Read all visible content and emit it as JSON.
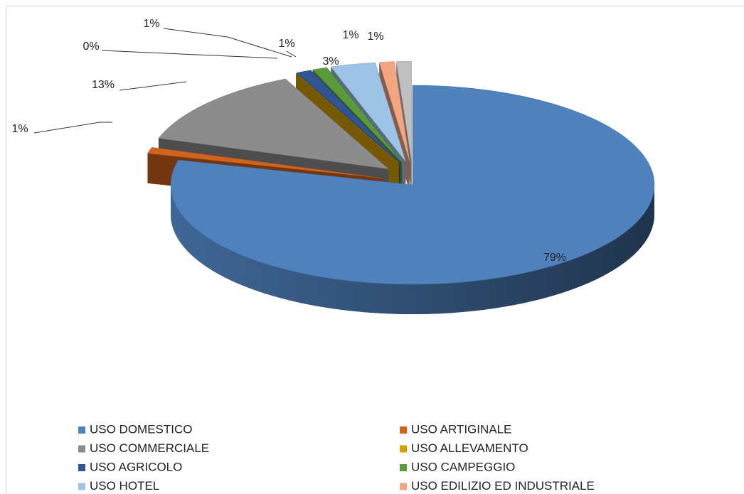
{
  "chart_data": {
    "type": "pie",
    "categories": [
      "USO DOMESTICO",
      "USO ARTIGINALE",
      "USO COMMERCIALE",
      "USO ALLEVAMENTO",
      "USO AGRICOLO",
      "USO CAMPEGGIO",
      "USO HOTEL",
      "USO EDILIZIO ED INDUSTRIALE",
      null
    ],
    "values": [
      79,
      1,
      13,
      0,
      1,
      1,
      3,
      1,
      1
    ],
    "value_labels": [
      "79%",
      "1%",
      "13%",
      "0%",
      "1%",
      "1%",
      "3%",
      "1%",
      "1%"
    ],
    "colors": [
      "#4f81bd",
      "#d0641e",
      "#8c8c8c",
      "#d4a000",
      "#2f5597",
      "#5a9a3a",
      "#9dc3e6",
      "#f4a582",
      "#bfbfbf"
    ],
    "legend": "bottom"
  }
}
